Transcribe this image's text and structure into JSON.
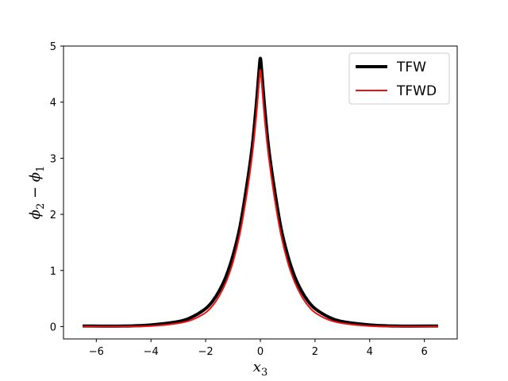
{
  "chart_data": {
    "type": "line",
    "title": "",
    "xlabel": "x",
    "xlabel_sub": "3",
    "ylabel": "ϕ",
    "ylabel_sub_a": "2",
    "ylabel_mid": " − ϕ",
    "ylabel_sub_b": "1",
    "xlim": [
      -7.2,
      7.2
    ],
    "ylim": [
      -0.22,
      5.0
    ],
    "xticks": [
      -6,
      -4,
      -2,
      0,
      2,
      4,
      6
    ],
    "xtick_labels": [
      "−6",
      "−4",
      "−2",
      "0",
      "2",
      "4",
      "6"
    ],
    "yticks": [
      0,
      1,
      2,
      3,
      4,
      5
    ],
    "ytick_labels": [
      "0",
      "1",
      "2",
      "3",
      "4",
      "5"
    ],
    "grid": false,
    "legend_position": "top-right",
    "x_range_data": [
      -6.5,
      6.5
    ],
    "series": [
      {
        "name": "TFW",
        "color": "#000000",
        "linewidth": 4,
        "x": [
          -6.5,
          -5.0,
          -4.0,
          -3.0,
          -2.5,
          -2.0,
          -1.75,
          -1.5,
          -1.25,
          -1.0,
          -0.75,
          -0.5,
          -0.3,
          -0.15,
          -0.05,
          0.0,
          0.05,
          0.15,
          0.3,
          0.5,
          0.75,
          1.0,
          1.25,
          1.5,
          1.75,
          2.0,
          2.5,
          3.0,
          4.0,
          5.0,
          6.5
        ],
        "y": [
          0.01,
          0.01,
          0.03,
          0.09,
          0.17,
          0.32,
          0.45,
          0.64,
          0.9,
          1.27,
          1.77,
          2.5,
          3.2,
          3.95,
          4.55,
          4.78,
          4.55,
          3.95,
          3.2,
          2.5,
          1.77,
          1.27,
          0.9,
          0.64,
          0.45,
          0.32,
          0.17,
          0.09,
          0.03,
          0.01,
          0.01
        ]
      },
      {
        "name": "TFWD",
        "color": "#ee1111",
        "linewidth": 2,
        "x": [
          -6.5,
          -5.0,
          -4.0,
          -3.0,
          -2.5,
          -2.0,
          -1.75,
          -1.5,
          -1.25,
          -1.0,
          -0.75,
          -0.5,
          -0.3,
          -0.15,
          -0.05,
          0.0,
          0.05,
          0.15,
          0.3,
          0.5,
          0.75,
          1.0,
          1.25,
          1.5,
          1.75,
          2.0,
          2.5,
          3.0,
          4.0,
          5.0,
          6.5
        ],
        "y": [
          0.0,
          0.0,
          0.01,
          0.06,
          0.12,
          0.25,
          0.37,
          0.55,
          0.8,
          1.15,
          1.65,
          2.35,
          3.05,
          3.75,
          4.35,
          4.58,
          4.35,
          3.75,
          3.05,
          2.35,
          1.65,
          1.15,
          0.8,
          0.55,
          0.37,
          0.25,
          0.12,
          0.06,
          0.01,
          0.0,
          0.0
        ]
      }
    ]
  }
}
